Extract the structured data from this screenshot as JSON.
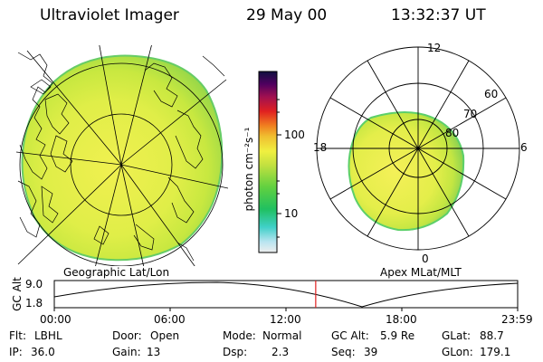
{
  "header": {
    "instrument": "Ultraviolet Imager",
    "date": "29 May 00",
    "time": "13:32:37 UT"
  },
  "left_panel": {
    "caption": "Geographic Lat/Lon"
  },
  "right_panel": {
    "caption": "Apex MLat/MLT",
    "mlt_labels": [
      "12",
      "18",
      "6",
      "0"
    ],
    "mlat_labels": [
      "60",
      "70",
      "80"
    ]
  },
  "colorbar": {
    "unit_label": "photon cm⁻²s⁻¹",
    "tick_labels": [
      "100",
      "10"
    ],
    "scale": "log",
    "colors": [
      "#e8e8e8",
      "#b8e8f0",
      "#40d0c0",
      "#20c060",
      "#60d040",
      "#c0e040",
      "#f0f040",
      "#f0c030",
      "#f08020",
      "#e02020",
      "#a01050",
      "#500060",
      "#101040"
    ]
  },
  "altitude_plot": {
    "ylabel": "GC Alt",
    "yticks": [
      "9.0",
      "1.8"
    ],
    "xticks": [
      "00:00",
      "06:00",
      "12:00",
      "18:00",
      "23:59"
    ],
    "current_time_hours": 13.54,
    "marker_color": "#e02020"
  },
  "status": {
    "filter_label": "Flt:",
    "filter_value": "LBHL",
    "ip_label": "IP:",
    "ip_value": "36.0",
    "door_label": "Door:",
    "door_value": "Open",
    "gain_label": "Gain:",
    "gain_value": "13",
    "mode_label": "Mode:",
    "mode_value": "Normal",
    "dsp_label": "Dsp:",
    "dsp_value": "2.3",
    "gcalt_label": "GC Alt:",
    "gcalt_value": "5.9 Re",
    "seq_label": "Seq:",
    "seq_value": "39",
    "glat_label": "GLat:",
    "glat_value": "88.7",
    "glon_label": "GLon:",
    "glon_value": "179.1"
  }
}
